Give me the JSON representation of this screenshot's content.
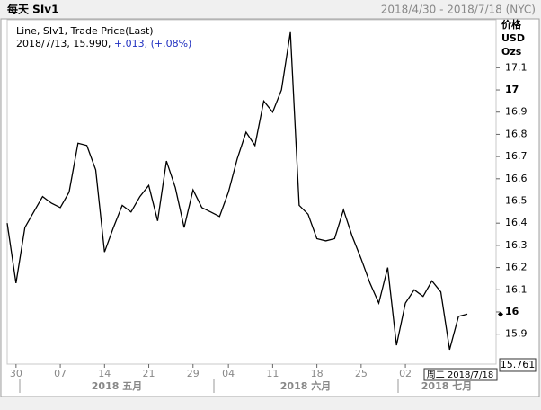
{
  "chart_data": {
    "type": "line",
    "title": "每天 SIv1",
    "date_range": "2018/4/30 - 2018/7/18 (NYC)",
    "y_axis_labels": [
      "价格",
      "USD",
      "Ozs"
    ],
    "legend_title": "Line, SIv1, Trade Price(Last)",
    "legend_status": "2018/7/13, 15.990,",
    "legend_change": "+.013, (+.08%)",
    "categories": [
      null,
      "30",
      null,
      null,
      null,
      null,
      "07",
      null,
      null,
      null,
      null,
      "14",
      null,
      null,
      null,
      null,
      "21",
      null,
      null,
      null,
      null,
      "29",
      null,
      null,
      null,
      "04",
      null,
      null,
      null,
      null,
      "11",
      null,
      null,
      null,
      null,
      "18",
      null,
      null,
      null,
      null,
      "25",
      null,
      null,
      null,
      null,
      "02",
      null,
      null,
      null,
      null,
      null,
      null,
      null
    ],
    "month_labels": [
      "2018 五月",
      "2018 六月",
      "2018 七月"
    ],
    "series": [
      {
        "name": "SIv1",
        "color": "#000000",
        "values": [
          16.4,
          16.13,
          16.38,
          16.45,
          16.52,
          16.49,
          16.47,
          16.54,
          16.76,
          16.75,
          16.64,
          16.27,
          16.38,
          16.48,
          16.45,
          16.52,
          16.57,
          16.41,
          16.68,
          16.56,
          16.38,
          16.55,
          16.47,
          16.45,
          16.43,
          16.54,
          16.69,
          16.81,
          16.75,
          16.95,
          16.9,
          17.0,
          17.26,
          16.48,
          16.44,
          16.33,
          16.32,
          16.33,
          16.46,
          16.34,
          16.24,
          16.13,
          16.04,
          16.2,
          15.85,
          16.04,
          16.1,
          16.07,
          16.14,
          16.09,
          15.83,
          15.98,
          15.99
        ]
      }
    ],
    "last_price": 15.761,
    "crosshair_label": "周二 2018/7/18",
    "ylim": [
      15.765,
      17.316
    ],
    "yticks": [
      15.9,
      16,
      16.1,
      16.2,
      16.3,
      16.4,
      16.5,
      16.6,
      16.7,
      16.8,
      16.9,
      17,
      17.1
    ]
  }
}
